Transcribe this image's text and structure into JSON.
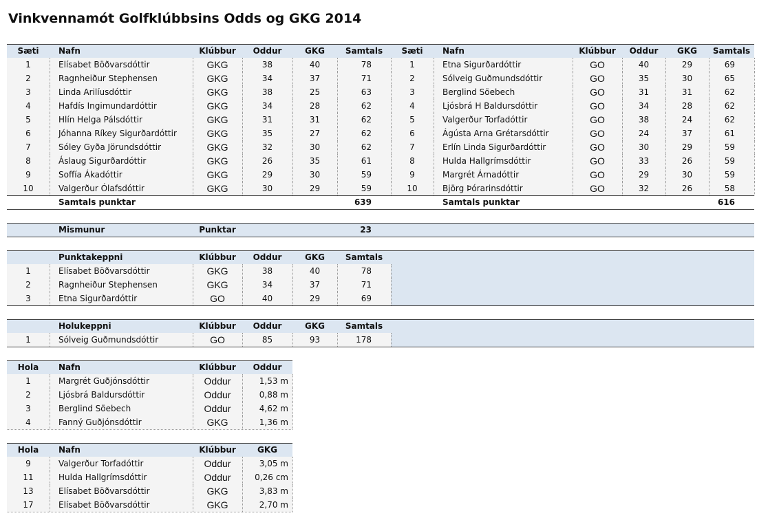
{
  "title": "Vinkvennamót Golfklúbbsins Odds og GKG 2014",
  "main": {
    "headers": [
      "Sæti",
      "Nafn",
      "Klúbbur",
      "Oddur",
      "GKG",
      "Samtals"
    ],
    "left": [
      [
        1,
        "Elísabet Böðvarsdóttir",
        "GKG",
        38,
        40,
        78
      ],
      [
        2,
        "Ragnheiður Stephensen",
        "GKG",
        34,
        37,
        71
      ],
      [
        3,
        "Linda Arilíusdóttir",
        "GKG",
        38,
        25,
        63
      ],
      [
        4,
        "Hafdís Ingimundardóttir",
        "GKG",
        34,
        28,
        62
      ],
      [
        5,
        "Hlín Helga Pálsdóttir",
        "GKG",
        31,
        31,
        62
      ],
      [
        6,
        "Jóhanna Ríkey Sigurðardóttir",
        "GKG",
        35,
        27,
        62
      ],
      [
        7,
        "Sóley Gyða Jörundsdóttir",
        "GKG",
        32,
        30,
        62
      ],
      [
        8,
        "Áslaug Sigurðardóttir",
        "GKG",
        26,
        35,
        61
      ],
      [
        9,
        "Soffía Ákadóttir",
        "GKG",
        29,
        30,
        59
      ],
      [
        10,
        "Valgerður Ólafsdóttir",
        "GKG",
        30,
        29,
        59
      ]
    ],
    "right": [
      [
        1,
        "Etna Sigurðardóttir",
        "GO",
        40,
        29,
        69
      ],
      [
        2,
        "Sólveig Guðmundsdóttir",
        "GO",
        35,
        30,
        65
      ],
      [
        3,
        "Berglind Söebech",
        "GO",
        31,
        31,
        62
      ],
      [
        4,
        "Ljósbrá H Baldursdóttir",
        "GO",
        34,
        28,
        62
      ],
      [
        5,
        "Valgerður Torfadóttir",
        "GO",
        38,
        24,
        62
      ],
      [
        6,
        "Ágústa Arna Grétarsdóttir",
        "GO",
        24,
        37,
        61
      ],
      [
        7,
        "Erlín Linda Sigurðardóttir",
        "GO",
        30,
        29,
        59
      ],
      [
        8,
        "Hulda Hallgrímsdóttir",
        "GO",
        33,
        26,
        59
      ],
      [
        9,
        "Margrét Árnadóttir",
        "GO",
        29,
        30,
        59
      ],
      [
        10,
        "Björg Þórarinsdóttir",
        "GO",
        32,
        26,
        58
      ]
    ],
    "total_label": "Samtals punktar",
    "left_total": 639,
    "right_total": 616
  },
  "difference": {
    "label": "Mismunur",
    "unit": "Punktar",
    "value": 23
  },
  "points_competition": {
    "headers": [
      "Punktakeppni",
      "Klúbbur",
      "Oddur",
      "GKG",
      "Samtals"
    ],
    "rows": [
      [
        1,
        "Elísabet Böðvarsdóttir",
        "GKG",
        38,
        40,
        78
      ],
      [
        2,
        "Ragnheiður Stephensen",
        "GKG",
        34,
        37,
        71
      ],
      [
        3,
        "Etna Sigurðardóttir",
        "GO",
        40,
        29,
        69
      ]
    ]
  },
  "hole_competition": {
    "headers": [
      "Holukeppni",
      "Klúbbur",
      "Oddur",
      "GKG",
      "Samtals"
    ],
    "rows": [
      [
        1,
        "Sólveig Guðmundsdóttir",
        "GO",
        85,
        93,
        178
      ]
    ]
  },
  "closest_oddur": {
    "headers": [
      "Hola",
      "Nafn",
      "Klúbbur",
      "Oddur"
    ],
    "rows": [
      [
        1,
        "Margrét Guðjónsdóttir",
        "Oddur",
        "1,53 m"
      ],
      [
        2,
        "Ljósbrá Baldursdóttir",
        "Oddur",
        "0,88 m"
      ],
      [
        3,
        "Berglind Söebech",
        "Oddur",
        "4,62 m"
      ],
      [
        4,
        "Fanný Guðjónsdóttir",
        "GKG",
        "1,36 m"
      ]
    ]
  },
  "closest_gkg": {
    "headers": [
      "Hola",
      "Nafn",
      "Klúbbur",
      "GKG"
    ],
    "rows": [
      [
        9,
        "Valgerður Torfadóttir",
        "Oddur",
        "3,05 m"
      ],
      [
        11,
        "Hulda Hallgrímsdóttir",
        "Oddur",
        "0,26 cm"
      ],
      [
        13,
        "Elísabet Böðvarsdóttir",
        "GKG",
        "3,83 m"
      ],
      [
        17,
        "Elísabet Böðvarsdóttir",
        "GKG",
        "2,70 m"
      ]
    ]
  }
}
